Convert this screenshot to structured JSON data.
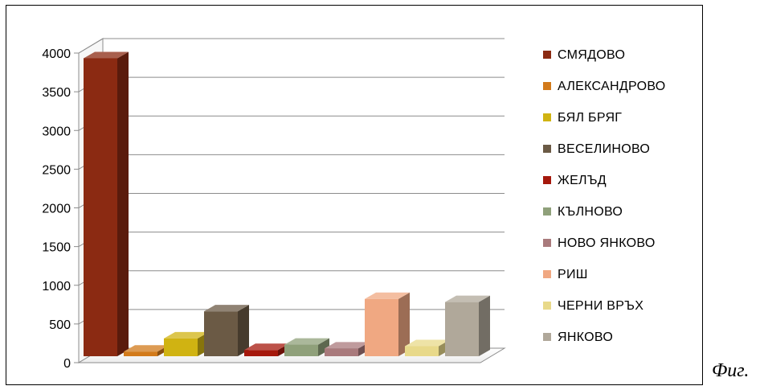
{
  "chart_data": {
    "type": "bar",
    "view": "3d-column",
    "categories": [
      "СМЯДОВО",
      "АЛЕКСАНДРОВО",
      "БЯЛ БРЯГ",
      "ВЕСЕЛИНОВО",
      "ЖЕЛЪД",
      "КЪЛНОВО",
      "НОВО ЯНКОВО",
      "РИШ",
      "ЧЕРНИ ВРЪХ",
      "ЯНКОВО"
    ],
    "values": [
      3850,
      60,
      230,
      580,
      80,
      150,
      100,
      740,
      130,
      700
    ],
    "colors": [
      "#8b2a12",
      "#d27a1a",
      "#d0b312",
      "#6b5a45",
      "#a5180c",
      "#8fa07a",
      "#a97a7c",
      "#f0a882",
      "#e8d98a",
      "#b0a89a"
    ],
    "ylim": [
      0,
      4000
    ],
    "yticks": [
      "0",
      "500",
      "1000",
      "1500",
      "2000",
      "2500",
      "3000",
      "3500",
      "4000"
    ],
    "grid": true,
    "legend_position": "right",
    "title": "",
    "xlabel": "",
    "ylabel": ""
  },
  "caption": "Фиг."
}
